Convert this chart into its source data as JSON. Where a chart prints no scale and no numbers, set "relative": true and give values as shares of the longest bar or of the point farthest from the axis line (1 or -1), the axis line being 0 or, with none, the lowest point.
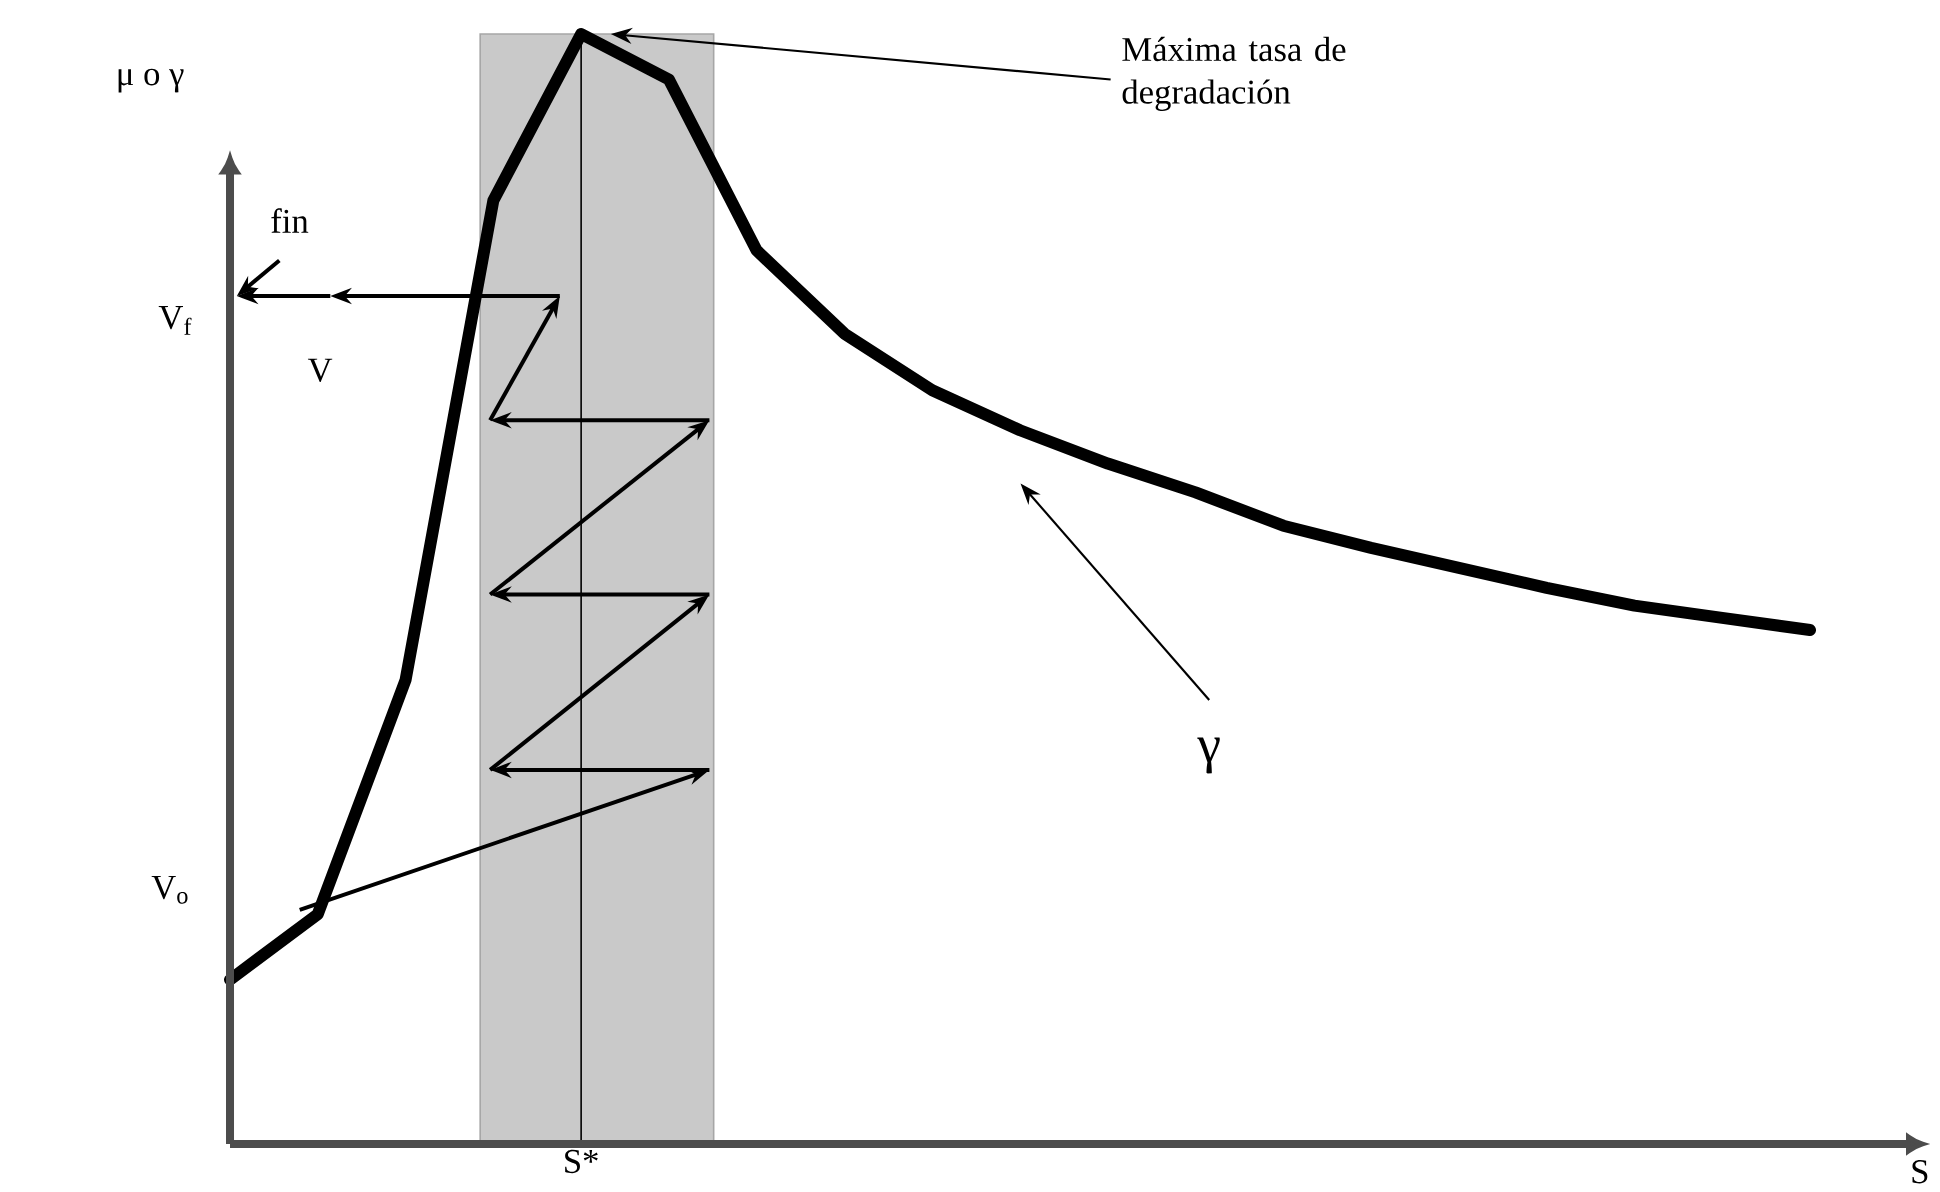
{
  "chart_data": {
    "type": "line",
    "relative": true,
    "xlabel": "S",
    "ylabel": "μ o γ",
    "categories": [
      null,
      null,
      null,
      null,
      null,
      null,
      null,
      null,
      null,
      null,
      null,
      null,
      null,
      null,
      null,
      null,
      null,
      null,
      null
    ],
    "series": [
      {
        "color": "#000000",
        "values": [
          0.148,
          0.207,
          0.418,
          0.85,
          1.0,
          0.959,
          0.805,
          0.73,
          0.679,
          0.643,
          0.613,
          0.587,
          0.557,
          0.537,
          0.519,
          0.501,
          0.485,
          0.474,
          0.463
        ]
      }
    ],
    "annotations": [
      "Máxima tasa de degradación",
      "γ",
      "fin",
      "V",
      "V$_{f}$",
      "V$_{o}$",
      "S*"
    ],
    "marker": "none",
    "line_style": "solid"
  }
}
